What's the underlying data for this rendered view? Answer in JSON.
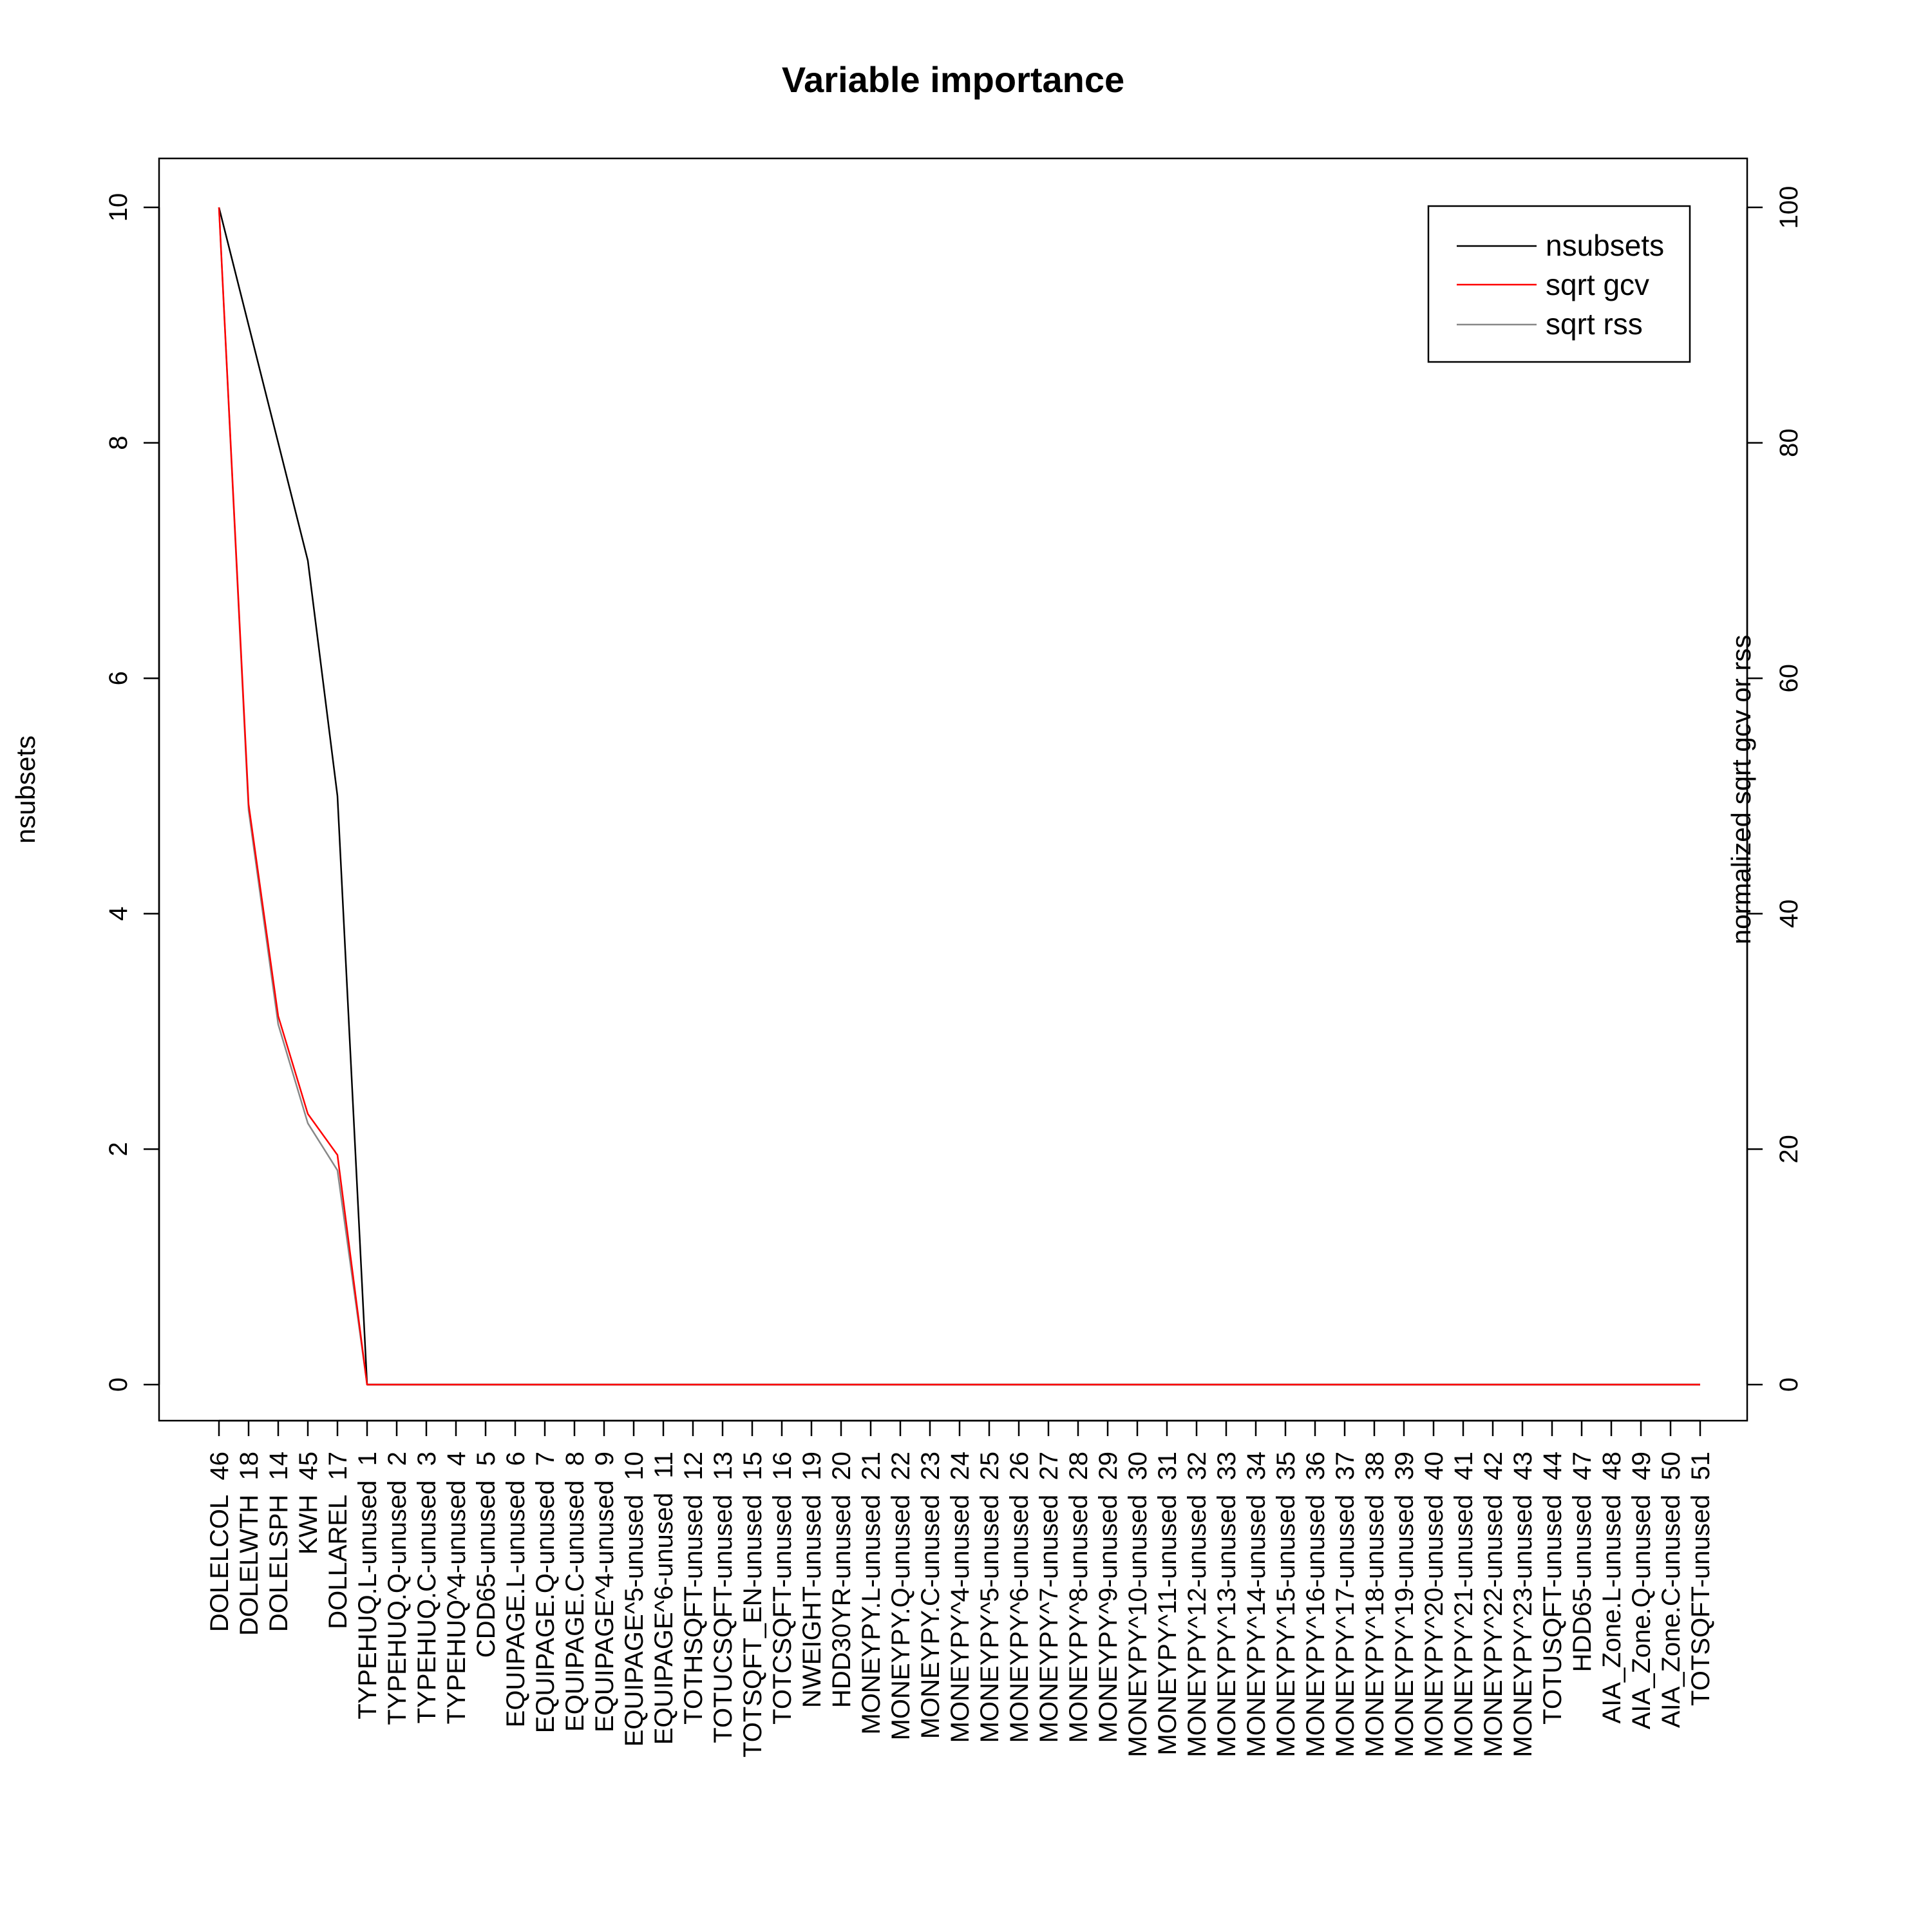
{
  "chart_data": {
    "type": "line",
    "title": "Variable importance",
    "xlabel": "",
    "ylabel": "nsubsets",
    "ylabel_right": "normalized sqrt gcv or rss",
    "ylim": [
      0,
      10
    ],
    "ylim_right": [
      0,
      100
    ],
    "yticks": [
      "0",
      "2",
      "4",
      "6",
      "8",
      "10"
    ],
    "yticks_right": [
      "0",
      "20",
      "40",
      "60",
      "80",
      "100"
    ],
    "categories": [
      "DOLELCOL  46",
      "DOLELWTH  18",
      "DOLELSPH  14",
      "KWH  45",
      "DOLLAREL  17",
      "TYPEHUQ.L-unused  1",
      "TYPEHUQ.Q-unused  2",
      "TYPEHUQ.C-unused  3",
      "TYPEHUQ^4-unused  4",
      "CDD65-unused  5",
      "EQUIPAGE.L-unused  6",
      "EQUIPAGE.Q-unused  7",
      "EQUIPAGE.C-unused  8",
      "EQUIPAGE^4-unused  9",
      "EQUIPAGE^5-unused  10",
      "EQUIPAGE^6-unused  11",
      "TOTHSQFT-unused  12",
      "TOTUCSQFT-unused  13",
      "TOTSQFT_EN-unused  15",
      "TOTCSQFT-unused  16",
      "NWEIGHT-unused  19",
      "HDD30YR-unused  20",
      "MONEYPY.L-unused  21",
      "MONEYPY.Q-unused  22",
      "MONEYPY.C-unused  23",
      "MONEYPY^4-unused  24",
      "MONEYPY^5-unused  25",
      "MONEYPY^6-unused  26",
      "MONEYPY^7-unused  27",
      "MONEYPY^8-unused  28",
      "MONEYPY^9-unused  29",
      "MONEYPY^10-unused  30",
      "MONEYPY^11-unused  31",
      "MONEYPY^12-unused  32",
      "MONEYPY^13-unused  33",
      "MONEYPY^14-unused  34",
      "MONEYPY^15-unused  35",
      "MONEYPY^16-unused  36",
      "MONEYPY^17-unused  37",
      "MONEYPY^18-unused  38",
      "MONEYPY^19-unused  39",
      "MONEYPY^20-unused  40",
      "MONEYPY^21-unused  41",
      "MONEYPY^22-unused  42",
      "MONEYPY^23-unused  43",
      "TOTUSQFT-unused  44",
      "HDD65-unused  47",
      "AIA_Zone.L-unused  48",
      "AIA_Zone.Q-unused  49",
      "AIA_Zone.C-unused  50",
      "TOTSQFT-unused  51"
    ],
    "series": [
      {
        "name": "nsubsets",
        "color": "#000000",
        "axis": "left",
        "values": [
          10,
          9,
          8,
          7,
          5,
          0,
          0,
          0,
          0,
          0,
          0,
          0,
          0,
          0,
          0,
          0,
          0,
          0,
          0,
          0,
          0,
          0,
          0,
          0,
          0,
          0,
          0,
          0,
          0,
          0,
          0,
          0,
          0,
          0,
          0,
          0,
          0,
          0,
          0,
          0,
          0,
          0,
          0,
          0,
          0,
          0,
          0,
          0,
          0,
          0,
          0
        ]
      },
      {
        "name": "sqrt gcv",
        "color": "#ff0000",
        "axis": "right",
        "values": [
          100,
          49.3,
          31.3,
          23.0,
          19.5,
          0,
          0,
          0,
          0,
          0,
          0,
          0,
          0,
          0,
          0,
          0,
          0,
          0,
          0,
          0,
          0,
          0,
          0,
          0,
          0,
          0,
          0,
          0,
          0,
          0,
          0,
          0,
          0,
          0,
          0,
          0,
          0,
          0,
          0,
          0,
          0,
          0,
          0,
          0,
          0,
          0,
          0,
          0,
          0,
          0,
          0
        ]
      },
      {
        "name": "sqrt rss",
        "color": "#888888",
        "axis": "right",
        "values": [
          100,
          48.8,
          30.6,
          22.2,
          18.2,
          0,
          0,
          0,
          0,
          0,
          0,
          0,
          0,
          0,
          0,
          0,
          0,
          0,
          0,
          0,
          0,
          0,
          0,
          0,
          0,
          0,
          0,
          0,
          0,
          0,
          0,
          0,
          0,
          0,
          0,
          0,
          0,
          0,
          0,
          0,
          0,
          0,
          0,
          0,
          0,
          0,
          0,
          0,
          0,
          0,
          0
        ]
      }
    ],
    "legend": {
      "position": "top-right",
      "entries": [
        "nsubsets",
        "sqrt gcv",
        "sqrt rss"
      ]
    }
  }
}
